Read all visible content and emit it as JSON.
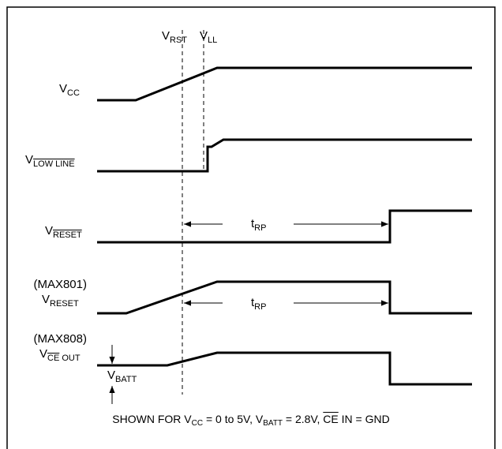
{
  "markers": {
    "rst": {
      "main": "V",
      "sub": "RST"
    },
    "ll": {
      "main": "V",
      "sub": "LL"
    }
  },
  "signals": {
    "vcc": {
      "main": "V",
      "sub": "CC"
    },
    "lowline": {
      "main": "V",
      "sub": "LOW LINE"
    },
    "reset_bar": {
      "main": "V",
      "sub": "RESET"
    },
    "max801": {
      "part": "(MAX801)",
      "main": "V",
      "sub": "RESET"
    },
    "max808": {
      "part": "(MAX808)",
      "main": "V",
      "sub_bar": "CE",
      "sub_rest": " OUT"
    }
  },
  "annotations": {
    "trp_1": {
      "main": "t",
      "sub": "RP"
    },
    "trp_2": {
      "main": "t",
      "sub": "RP"
    },
    "vbatt": {
      "main": "V",
      "sub": "BATT"
    }
  },
  "caption": {
    "prefix": "SHOWN FOR V",
    "vcc_sub": "CC",
    "vcc_range": " = 0 to 5V,  V",
    "batt_sub": "BATT",
    "batt_val": " = 2.8V,  ",
    "ce_bar": "CE",
    "suffix": " IN = GND"
  }
}
